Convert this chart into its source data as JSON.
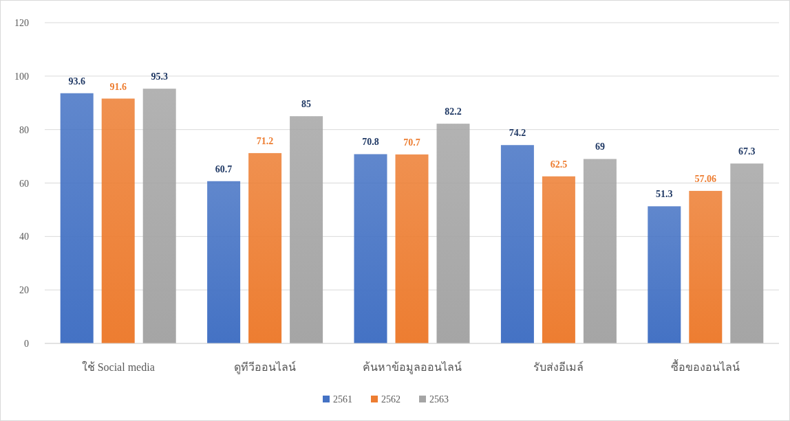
{
  "chart_data": {
    "type": "bar",
    "categories": [
      "ใช้ Social media",
      "ดูทีวีออนไลน์",
      "ค้นหาข้อมูลออนไลน์",
      "รับส่งอีเมล์",
      "ซื้อของอนไลน์"
    ],
    "series": [
      {
        "name": "2561",
        "color": "#4472c4",
        "values": [
          93.6,
          60.7,
          70.8,
          74.2,
          51.3
        ]
      },
      {
        "name": "2562",
        "color": "#ed7d31",
        "values": [
          91.6,
          71.2,
          70.7,
          62.5,
          57.06
        ]
      },
      {
        "name": "2563",
        "color": "#a5a5a5",
        "values": [
          95.3,
          85,
          82.2,
          69,
          67.3
        ]
      }
    ],
    "ylim": [
      0,
      120
    ],
    "yticks": [
      0,
      20,
      40,
      60,
      80,
      100,
      120
    ],
    "grid": "y",
    "legend": "bottom",
    "data_labels": true
  }
}
